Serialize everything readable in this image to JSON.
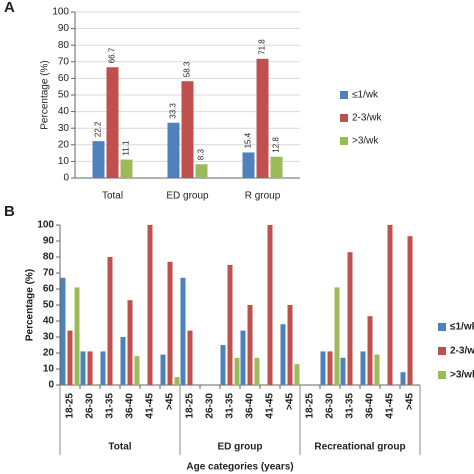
{
  "chart_data": [
    {
      "type": "bar",
      "panel": "A",
      "y_label": "Percentage (%)",
      "categories": [
        "Total",
        "ED group",
        "R group"
      ],
      "series": [
        {
          "name": "≤1/wk",
          "color": "#4f81bd",
          "values": [
            22.2,
            33.3,
            15.4
          ]
        },
        {
          "name": "2-3/wk",
          "color": "#c0504d",
          "values": [
            66.7,
            58.3,
            71.8
          ]
        },
        {
          "name": ">3/wk",
          "color": "#9bbb59",
          "values": [
            11.1,
            8.3,
            12.8
          ]
        }
      ],
      "ylim": [
        0,
        100
      ],
      "yticks": [
        0,
        10,
        20,
        30,
        40,
        50,
        60,
        70,
        80,
        90,
        100
      ],
      "grid": true,
      "show_values": true,
      "legend": "right"
    },
    {
      "type": "bar",
      "panel": "B",
      "y_label": "Percentage (%)",
      "x_label": "Age categories (years)",
      "categories": [
        "18-25",
        "26-30",
        "31-35",
        "36-40",
        "41-45",
        ">45",
        "18-25",
        "26-30",
        "31-35",
        "36-40",
        "41-45",
        ">45",
        "18-25",
        "26-30",
        "31-35",
        "36-40",
        "41-45",
        ">45"
      ],
      "groups": [
        "Total",
        "ED group",
        "Recreational group"
      ],
      "series": [
        {
          "name": "≤1/wk",
          "color": "#4f81bd",
          "values": [
            67,
            21,
            21,
            30,
            0,
            19,
            67,
            0,
            25,
            34,
            0,
            38,
            0,
            21,
            17,
            21,
            0,
            8
          ]
        },
        {
          "name": "2-3/wk",
          "color": "#c0504d",
          "values": [
            34,
            21,
            80,
            53,
            100,
            77,
            34,
            0,
            75,
            50,
            100,
            50,
            0,
            21,
            83,
            43,
            100,
            93
          ]
        },
        {
          "name": ">3/wk",
          "color": "#9bbb59",
          "values": [
            61,
            0,
            0,
            18,
            0,
            5,
            0,
            0,
            17,
            17,
            0,
            13,
            0,
            61,
            0,
            19,
            0,
            0
          ]
        }
      ],
      "ylim": [
        0,
        100
      ],
      "yticks": [
        0,
        10,
        20,
        30,
        40,
        50,
        60,
        70,
        80,
        90,
        100
      ],
      "grid": false,
      "show_values": false,
      "legend": "right"
    }
  ]
}
